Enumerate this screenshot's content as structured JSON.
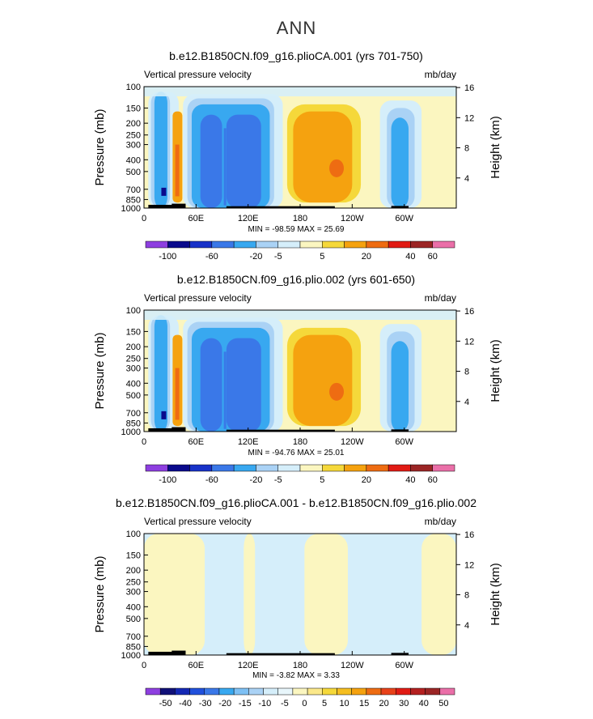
{
  "page": {
    "title": "ANN"
  },
  "colors": {
    "colorbar_12": [
      "#8e3fe0",
      "#0a0a8c",
      "#1832c8",
      "#3a78e8",
      "#38a8f0",
      "#aad2f5",
      "#d5eefa",
      "#fbf6c0",
      "#f5d83a",
      "#f5a20f",
      "#ee6c12",
      "#e11b14",
      "#9b2525",
      "#ea6fa8"
    ],
    "colorbar_22": [
      "#8e3fe0",
      "#101078",
      "#1428b4",
      "#2050dc",
      "#3a78e8",
      "#38a8f0",
      "#7ec0f4",
      "#aad2f5",
      "#d5eefa",
      "#e8f6fb",
      "#fbf6c0",
      "#fbe88a",
      "#f5d83a",
      "#f5be20",
      "#f5a20f",
      "#ee6c12",
      "#e8421a",
      "#e11b14",
      "#b42020",
      "#9b2525",
      "#ea6fa8"
    ]
  },
  "chart_data": [
    {
      "type": "heatmap",
      "title": "b.e12.B1850CN.f09_g16.plioCA.001 (yrs 701-750)",
      "subtitle_left": "Vertical pressure velocity",
      "subtitle_right": "mb/day",
      "ylabel": "Pressure (mb)",
      "ylabel_right": "Height (km)",
      "xticks": [
        "0",
        "60E",
        "120E",
        "180",
        "120W",
        "60W"
      ],
      "yticks": [
        "100",
        "150",
        "200",
        "250",
        "300",
        "400",
        "500",
        "700",
        "850",
        "1000"
      ],
      "yticks_right": [
        "16",
        "12",
        "8",
        "4"
      ],
      "stats": "MIN = -98.59   MAX =  25.69",
      "colorbar_labels": [
        "-100",
        "-60",
        "-20",
        "-5",
        "5",
        "20",
        "40",
        "60"
      ],
      "blobs": [
        {
          "x": 180,
          "p": 450,
          "value": 10
        },
        {
          "x": 220,
          "p": 480,
          "value": 20
        },
        {
          "x": 100,
          "p": 450,
          "value": -20
        },
        {
          "x": 135,
          "p": 500,
          "value": -20
        },
        {
          "x": 295,
          "p": 450,
          "value": -20
        },
        {
          "x": 20,
          "p": 500,
          "value": -20
        },
        {
          "x": 37,
          "p": 400,
          "value": 20
        }
      ]
    },
    {
      "type": "heatmap",
      "title": "b.e12.B1850CN.f09_g16.plio.002 (yrs 601-650)",
      "subtitle_left": "Vertical pressure velocity",
      "subtitle_right": "mb/day",
      "ylabel": "Pressure (mb)",
      "ylabel_right": "Height (km)",
      "xticks": [
        "0",
        "60E",
        "120E",
        "180",
        "120W",
        "60W"
      ],
      "yticks": [
        "100",
        "150",
        "200",
        "250",
        "300",
        "400",
        "500",
        "700",
        "850",
        "1000"
      ],
      "yticks_right": [
        "16",
        "12",
        "8",
        "4"
      ],
      "stats": "MIN = -94.76   MAX =  25.01",
      "colorbar_labels": [
        "-100",
        "-60",
        "-20",
        "-5",
        "5",
        "20",
        "40",
        "60"
      ],
      "blobs": [
        {
          "x": 180,
          "p": 450,
          "value": 10
        },
        {
          "x": 215,
          "p": 480,
          "value": 20
        },
        {
          "x": 100,
          "p": 450,
          "value": -20
        },
        {
          "x": 135,
          "p": 500,
          "value": -20
        },
        {
          "x": 295,
          "p": 450,
          "value": -20
        },
        {
          "x": 20,
          "p": 500,
          "value": -20
        },
        {
          "x": 37,
          "p": 400,
          "value": 20
        }
      ]
    },
    {
      "type": "heatmap",
      "title": "b.e12.B1850CN.f09_g16.plioCA.001 - b.e12.B1850CN.f09_g16.plio.002",
      "subtitle_left": "Vertical pressure velocity",
      "subtitle_right": "mb/day",
      "ylabel": "Pressure (mb)",
      "ylabel_right": "Height (km)",
      "xticks": [
        "0",
        "60E",
        "120E",
        "180",
        "120W",
        "60W"
      ],
      "yticks": [
        "100",
        "150",
        "200",
        "250",
        "300",
        "400",
        "500",
        "700",
        "850",
        "1000"
      ],
      "yticks_right": [
        "16",
        "12",
        "8",
        "4"
      ],
      "stats": "MIN =  -3.82   MAX =   3.33",
      "colorbar_labels": [
        "-50",
        "-40",
        "-30",
        "-20",
        "-15",
        "-10",
        "-5",
        "0",
        "5",
        "10",
        "15",
        "20",
        "30",
        "40",
        "50"
      ],
      "blobs": [
        {
          "x": 60,
          "p": 500,
          "value": 0.5
        },
        {
          "x": 200,
          "p": 500,
          "value": 0.5
        },
        {
          "x": 140,
          "p": 450,
          "value": -0.5
        },
        {
          "x": 300,
          "p": 450,
          "value": -0.5
        }
      ]
    }
  ]
}
